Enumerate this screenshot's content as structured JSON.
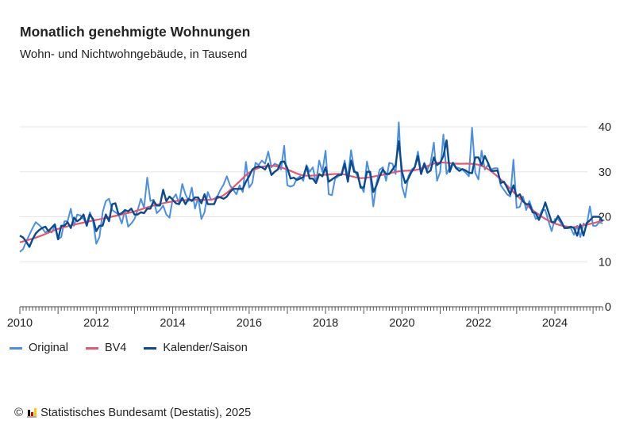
{
  "chart_data": {
    "type": "line",
    "title": "Monatlich genehmigte Wohnungen",
    "subtitle": "Wohn- und Nichtwohngebäude, in Tausend",
    "xlabel": "",
    "ylabel": "",
    "xlim": [
      "2010-01",
      "2025-04"
    ],
    "ylim": [
      0,
      40
    ],
    "x_ticks": [
      "2010",
      "2012",
      "2014",
      "2016",
      "2018",
      "2020",
      "2022",
      "2024"
    ],
    "y_ticks": [
      "0",
      "10",
      "20",
      "30",
      "40"
    ],
    "grid": true,
    "legend_position": "bottom-left",
    "series": [
      {
        "name": "Original",
        "color": "#4a90e2",
        "start": "2010-01",
        "frequency": "monthly",
        "values": [
          12.2,
          12.8,
          14.5,
          16,
          17.5,
          18.8,
          18.2,
          17.5,
          16.5,
          17,
          16.5,
          18,
          15,
          15.5,
          19,
          19,
          21.8,
          18,
          20.5,
          20.3,
          19.5,
          18.5,
          21,
          19,
          14,
          15.5,
          21,
          23.5,
          24,
          21.5,
          21,
          20.5,
          18.5,
          21.5,
          17.8,
          18.5,
          19.5,
          21.5,
          24,
          22,
          28.7,
          23.5,
          23.8,
          20.8,
          21.5,
          22.5,
          20.5,
          19.8,
          24,
          25,
          23,
          27.3,
          25,
          23.5,
          26.5,
          21.8,
          24.3,
          19.5,
          21,
          25.5,
          23.8,
          24,
          24.5,
          26,
          27.2,
          29,
          27,
          26,
          25,
          27,
          25.5,
          32.2,
          26.5,
          27.5,
          32,
          31.5,
          32.5,
          31.8,
          34.5,
          31,
          31.8,
          31.5,
          30.5,
          35.8,
          27,
          26.7,
          27,
          28.5,
          29,
          28,
          31.5,
          30,
          31,
          27.5,
          32.5,
          30,
          34.7,
          25,
          24.8,
          28.5,
          29,
          29.5,
          32.5,
          28.5,
          34.8,
          30.5,
          29,
          27,
          25.5,
          32.3,
          29,
          22.3,
          27.5,
          30.5,
          31,
          28,
          32,
          31.8,
          29.5,
          41,
          26.8,
          24.3,
          29,
          30.5,
          31,
          34.5,
          30,
          32,
          30.5,
          32,
          36.5,
          28,
          30,
          38.3,
          29.5,
          31,
          32,
          31,
          30.8,
          30.5,
          29.8,
          29,
          39.8,
          29.8,
          28.3,
          34.7,
          30.5,
          31.5,
          30.5,
          30.8,
          30.8,
          27,
          26,
          25,
          24.5,
          32.7,
          22,
          22.2,
          24.5,
          21.5,
          23.5,
          21.5,
          19.5,
          20,
          21.5,
          21.5,
          19,
          16.8,
          19.5,
          19.5,
          18.5,
          17.5,
          17.5,
          17.5,
          16,
          18,
          15.5,
          18.5,
          18,
          22.3,
          18,
          18,
          18.8,
          18.5
        ]
      },
      {
        "name": "BV4",
        "color": "#e8566d",
        "points": [
          [
            "2010-01",
            14.3
          ],
          [
            "2010-07",
            15.6
          ],
          [
            "2011-01",
            17.3
          ],
          [
            "2011-07",
            18.4
          ],
          [
            "2012-01",
            19.3
          ],
          [
            "2012-07",
            20.2
          ],
          [
            "2013-01",
            21.2
          ],
          [
            "2013-07",
            22.5
          ],
          [
            "2014-01",
            23.4
          ],
          [
            "2014-07",
            23.8
          ],
          [
            "2015-01",
            23.8
          ],
          [
            "2015-05",
            24.8
          ],
          [
            "2015-09",
            27.2
          ],
          [
            "2016-01",
            29.8
          ],
          [
            "2016-05",
            31.1
          ],
          [
            "2016-09",
            31.3
          ],
          [
            "2017-01",
            30.5
          ],
          [
            "2017-06",
            29.2
          ],
          [
            "2017-12",
            29.3
          ],
          [
            "2018-06",
            29.5
          ],
          [
            "2018-12",
            28.6
          ],
          [
            "2019-06",
            29.2
          ],
          [
            "2019-12",
            30.1
          ],
          [
            "2020-06",
            30.5
          ],
          [
            "2020-12",
            32
          ],
          [
            "2021-06",
            31.8
          ],
          [
            "2021-12",
            31.7
          ],
          [
            "2022-04",
            30.6
          ],
          [
            "2022-08",
            28.3
          ],
          [
            "2023-01",
            24.8
          ],
          [
            "2023-06",
            21.5
          ],
          [
            "2023-12",
            18.8
          ],
          [
            "2024-06",
            17.7
          ],
          [
            "2024-10",
            18.1
          ],
          [
            "2025-04",
            19.1
          ]
        ]
      },
      {
        "name": "Kalender/Saison",
        "color": "#0b4a8f",
        "start": "2010-01",
        "frequency": "monthly",
        "values": [
          15.8,
          15.4,
          14.5,
          13.3,
          15,
          16.3,
          17,
          17.5,
          17.8,
          16.8,
          17.6,
          18.3,
          15,
          18,
          18,
          18.8,
          17.5,
          19.8,
          19,
          19.5,
          20.5,
          18,
          20.5,
          19.5,
          16.8,
          18,
          18,
          20.5,
          19,
          22.8,
          23,
          20.5,
          20.8,
          21.5,
          21.2,
          21.8,
          20.5,
          20.5,
          21,
          20.8,
          21.8,
          21.8,
          23.5,
          22.5,
          22.5,
          26,
          23.5,
          24.5,
          23.8,
          23,
          22.8,
          24.2,
          22.8,
          24,
          23.5,
          24.3,
          24.3,
          23,
          25,
          22.8,
          22.8,
          22.8,
          24.5,
          24.3,
          24,
          24.5,
          25.5,
          26.2,
          26.2,
          26.2,
          26.2,
          27.8,
          29,
          30.5,
          31,
          31.2,
          31,
          30.5,
          31.8,
          29.3,
          30,
          30.5,
          32.2,
          32.3,
          30.8,
          28.5,
          28.7,
          28.2,
          28.5,
          28.8,
          31.2,
          28.5,
          28.5,
          27.5,
          29.5,
          29,
          31,
          27.8,
          28.3,
          28.8,
          29.3,
          29.3,
          31.8,
          27.8,
          32.5,
          30,
          29.8,
          26.5,
          26.5,
          30,
          30,
          25.5,
          27,
          29,
          30.5,
          29.5,
          29.5,
          30.5,
          31.5,
          36.8,
          30,
          27.5,
          28.5,
          30,
          31,
          33.5,
          29.5,
          31.8,
          29.8,
          30.3,
          33.2,
          31.5,
          32,
          33.5,
          37,
          30,
          32,
          30.8,
          30.2,
          30.6,
          30.3,
          29.8,
          29.7,
          33.2,
          33.2,
          31.5,
          33.5,
          32,
          30.2,
          30.2,
          30.3,
          27.5,
          27.8,
          26.5,
          25,
          27,
          24.5,
          25,
          23.5,
          22.8,
          22.8,
          21,
          20.8,
          19.3,
          21,
          23.2,
          21,
          18.8,
          18.8,
          20.2,
          19,
          17.5,
          17.5,
          17.8,
          17.5,
          15.8,
          18.3,
          15.8,
          18.6,
          19.2,
          20,
          20,
          20,
          19
        ]
      }
    ]
  },
  "footer": {
    "copyright_symbol": "©",
    "source": "Statistisches Bundesamt (Destatis), 2025",
    "logo_colors": [
      "#000000",
      "#dd0000",
      "#ffcc00"
    ]
  }
}
